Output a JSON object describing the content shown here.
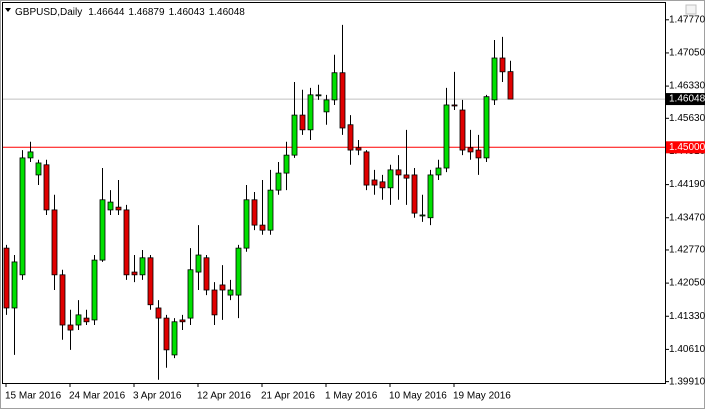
{
  "chart_data": {
    "type": "candlestick",
    "title": "GBPUSD,Daily",
    "categories": [
      "15 Mar 2016",
      null,
      null,
      null,
      null,
      null,
      null,
      null,
      "24 Mar 2016",
      null,
      null,
      null,
      null,
      null,
      null,
      null,
      "3 Apr 2016",
      null,
      null,
      null,
      null,
      null,
      null,
      null,
      "12 Apr 2016",
      null,
      null,
      null,
      null,
      null,
      null,
      null,
      "21 Apr 2016",
      null,
      null,
      null,
      null,
      null,
      null,
      null,
      "1 May 2016",
      null,
      null,
      null,
      null,
      null,
      null,
      null,
      "10 May 2016",
      null,
      null,
      null,
      null,
      null,
      null,
      null,
      "19 May 2016",
      null,
      null,
      null,
      null,
      null,
      null,
      null
    ],
    "open": [
      1.4281,
      1.4151,
      1.4223,
      1.4477,
      1.444,
      1.4462,
      1.4364,
      1.4223,
      1.4114,
      1.4114,
      1.4129,
      1.4125,
      1.4255,
      1.4364,
      1.437,
      1.4364,
      1.4229,
      1.4223,
      1.426,
      1.4151,
      1.4129,
      1.4049,
      1.4125,
      1.4129,
      1.4229,
      1.426,
      1.419,
      1.4201,
      1.4179,
      1.4179,
      1.4281,
      1.4386,
      1.4331,
      1.432,
      1.4407,
      1.4444,
      1.4483,
      1.457,
      1.4538,
      1.4612,
      1.4577,
      1.4603,
      1.4662,
      1.4549,
      1.4499,
      1.449,
      1.4429,
      1.4425,
      1.4412,
      1.4451,
      1.444,
      1.444,
      1.4351,
      1.4347,
      1.444,
      1.4455,
      1.4592,
      1.4581,
      1.4499,
      1.4494,
      1.4477,
      1.4603,
      1.4694,
      1.46644
    ],
    "high": [
      1.4288,
      1.4266,
      1.4494,
      1.4512,
      1.4473,
      1.4473,
      1.4397,
      1.4234,
      1.4147,
      1.4168,
      1.4147,
      1.4266,
      1.4455,
      1.4407,
      1.4429,
      1.4375,
      1.4266,
      1.4277,
      1.4266,
      1.4168,
      1.4136,
      1.4129,
      1.4136,
      1.4281,
      1.4331,
      1.4266,
      1.4207,
      1.4244,
      1.4212,
      1.4288,
      1.4418,
      1.4403,
      1.4429,
      1.4451,
      1.4468,
      1.4512,
      1.4642,
      1.4625,
      1.4629,
      1.4636,
      1.4614,
      1.4701,
      1.4766,
      1.457,
      1.4516,
      1.4494,
      1.4451,
      1.444,
      1.4462,
      1.4483,
      1.4538,
      1.4455,
      1.4397,
      1.4451,
      1.4473,
      1.4629,
      1.4664,
      1.4603,
      1.4538,
      1.4527,
      1.4614,
      1.4733,
      1.474,
      1.46879
    ],
    "low": [
      1.4136,
      1.4049,
      1.4212,
      1.4468,
      1.4418,
      1.4353,
      1.419,
      1.4082,
      1.406,
      1.4103,
      1.4114,
      1.4114,
      1.4251,
      1.4353,
      1.4353,
      1.4212,
      1.4207,
      1.4212,
      1.4147,
      1.3995,
      1.4021,
      1.4042,
      1.4103,
      1.4114,
      1.419,
      1.4179,
      1.4114,
      1.4125,
      1.4168,
      1.4129,
      1.4273,
      1.432,
      1.431,
      1.431,
      1.4397,
      1.4407,
      1.4477,
      1.4527,
      1.4516,
      1.4603,
      1.4549,
      1.4592,
      1.4527,
      1.4462,
      1.4483,
      1.4407,
      1.4397,
      1.4386,
      1.4375,
      1.4386,
      1.4375,
      1.4347,
      1.4338,
      1.4331,
      1.4429,
      1.4446,
      1.4581,
      1.4483,
      1.4473,
      1.444,
      1.4468,
      1.4592,
      1.4642,
      1.46043
    ],
    "close": [
      1.4151,
      1.4251,
      1.4477,
      1.449,
      1.4466,
      1.4364,
      1.4223,
      1.4114,
      1.4103,
      1.4136,
      1.4121,
      1.4255,
      1.4386,
      1.4381,
      1.4364,
      1.4223,
      1.4223,
      1.426,
      1.4158,
      1.4129,
      1.406,
      1.4121,
      1.4121,
      1.4234,
      1.4266,
      1.419,
      1.4136,
      1.419,
      1.419,
      1.4281,
      1.4386,
      1.4331,
      1.432,
      1.4407,
      1.4444,
      1.4483,
      1.457,
      1.4538,
      1.4614,
      1.4614,
      1.4603,
      1.4662,
      1.4542,
      1.4494,
      1.4494,
      1.4418,
      1.4418,
      1.4412,
      1.4451,
      1.444,
      1.4433,
      1.4357,
      1.4353,
      1.444,
      1.4455,
      1.4592,
      1.459,
      1.4494,
      1.449,
      1.4477,
      1.461,
      1.4694,
      1.4664,
      1.46048
    ],
    "up_color": "#00e000",
    "down_color": "#e00000",
    "ylim": [
      1.3988,
      1.482
    ],
    "yticks": [
      {
        "value": 1.4777,
        "label": "1.47770"
      },
      {
        "value": 1.4705,
        "label": "1.47050"
      },
      {
        "value": 1.4633,
        "label": "1.46330"
      },
      {
        "value": 1.4563,
        "label": "1.45630"
      },
      {
        "value": 1.4491,
        "label": "1.44910"
      },
      {
        "value": 1.4419,
        "label": "1.44190"
      },
      {
        "value": 1.4347,
        "label": "1.43470"
      },
      {
        "value": 1.4277,
        "label": "1.42770"
      },
      {
        "value": 1.4205,
        "label": "1.42050"
      },
      {
        "value": 1.4133,
        "label": "1.41330"
      },
      {
        "value": 1.4061,
        "label": "1.40610"
      },
      {
        "value": 1.3991,
        "label": "1.39910"
      }
    ],
    "current_price": 1.46048,
    "level": {
      "value": 1.45,
      "label": "1.45000"
    },
    "level_color": "#ff0000"
  }
}
